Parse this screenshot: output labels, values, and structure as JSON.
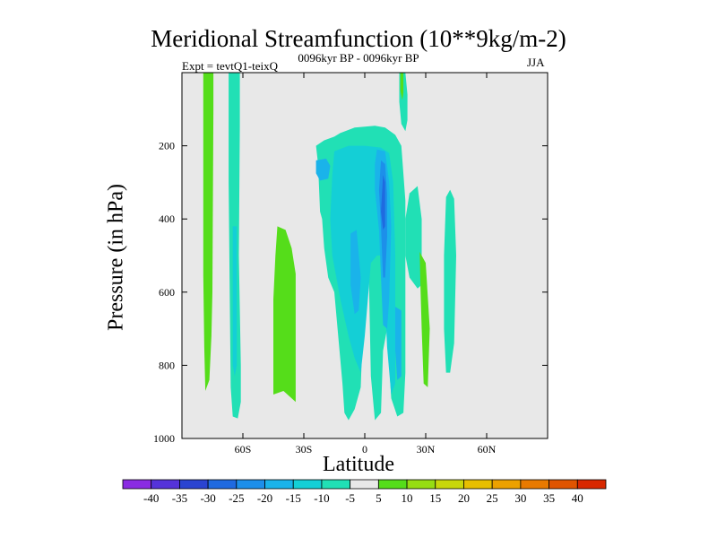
{
  "chart_data": {
    "type": "heatmap",
    "title": "Meridional Streamfunction (10**9kg/m-2)",
    "subtitle_left": "Expt = tevtQ1-teixQ",
    "subtitle_center": "0096kyr BP - 0096kyr BP",
    "subtitle_right": "JJA",
    "xlabel": "Latitude",
    "ylabel": "Pressure (in hPa)",
    "xlim": [
      -90,
      90
    ],
    "ylim": [
      1000,
      0
    ],
    "background_color": "#e8e8e8",
    "x_ticks": [
      {
        "value": -60,
        "label": "60S"
      },
      {
        "value": -30,
        "label": "30S"
      },
      {
        "value": 0,
        "label": "0"
      },
      {
        "value": 30,
        "label": "30N"
      },
      {
        "value": 60,
        "label": "60N"
      }
    ],
    "y_ticks": [
      {
        "value": 200,
        "label": "200"
      },
      {
        "value": 400,
        "label": "400"
      },
      {
        "value": 600,
        "label": "600"
      },
      {
        "value": 800,
        "label": "800"
      },
      {
        "value": 1000,
        "label": "1000"
      }
    ],
    "colorbar": {
      "labels": [
        "-40",
        "-35",
        "-30",
        "-25",
        "-20",
        "-15",
        "-10",
        "-5",
        "5",
        "10",
        "15",
        "20",
        "25",
        "30",
        "35",
        "40"
      ],
      "colors": [
        "#8a2be2",
        "#5533d9",
        "#2a44d1",
        "#1f6ae0",
        "#1d8fea",
        "#1ab3ea",
        "#14cfd6",
        "#21e0b5",
        "#e8e8e8",
        "#55dd1a",
        "#96dd12",
        "#c8d70a",
        "#e7bf00",
        "#eca100",
        "#e87a00",
        "#e05400",
        "#d82800"
      ]
    },
    "regions": [
      {
        "name": "green-band-70s",
        "value": 7.5,
        "color": "#55dd1a",
        "outline": [
          [
            -79.5,
            0
          ],
          [
            -74.5,
            0
          ],
          [
            -74.5,
            105
          ],
          [
            -75,
            600
          ],
          [
            -75.5,
            720
          ],
          [
            -76.5,
            840
          ],
          [
            -78.5,
            870
          ],
          [
            -79,
            750
          ],
          [
            -79.5,
            550
          ],
          [
            -79.5,
            200
          ]
        ]
      },
      {
        "name": "cyan-band-62s",
        "value": -7.5,
        "color": "#21e0b5",
        "outline": [
          [
            -67,
            0
          ],
          [
            -61.5,
            0
          ],
          [
            -61.5,
            150
          ],
          [
            -62,
            500
          ],
          [
            -61,
            800
          ],
          [
            -61,
            900
          ],
          [
            -62.5,
            945
          ],
          [
            -65,
            940
          ],
          [
            -66,
            860
          ],
          [
            -66.5,
            600
          ],
          [
            -67,
            300
          ]
        ]
      },
      {
        "name": "blue-core-62s",
        "value": -12.5,
        "color": "#14cfd6",
        "outline": [
          [
            -65,
            420
          ],
          [
            -63,
            420
          ],
          [
            -63,
            800
          ],
          [
            -64,
            830
          ],
          [
            -65,
            800
          ]
        ]
      },
      {
        "name": "green-blob-40s",
        "value": 7.5,
        "color": "#55dd1a",
        "outline": [
          [
            -43,
            420
          ],
          [
            -39,
            430
          ],
          [
            -36,
            480
          ],
          [
            -34,
            550
          ],
          [
            -34,
            900
          ],
          [
            -40,
            870
          ],
          [
            -45,
            880
          ],
          [
            -45,
            620
          ],
          [
            -44,
            500
          ]
        ]
      },
      {
        "name": "cyan-main-system",
        "value": -7.5,
        "color": "#21e0b5",
        "outline": [
          [
            -24,
            200
          ],
          [
            -20,
            185
          ],
          [
            -15,
            175
          ],
          [
            -12,
            165
          ],
          [
            -5,
            150
          ],
          [
            5,
            145
          ],
          [
            10,
            150
          ],
          [
            15,
            170
          ],
          [
            18,
            200
          ],
          [
            20,
            350
          ],
          [
            20,
            820
          ],
          [
            19,
            930
          ],
          [
            16,
            940
          ],
          [
            13,
            890
          ],
          [
            11,
            700
          ],
          [
            9,
            760
          ],
          [
            8,
            930
          ],
          [
            5,
            950
          ],
          [
            3,
            830
          ],
          [
            2,
            550
          ],
          [
            0,
            550
          ],
          [
            -2,
            860
          ],
          [
            -5,
            920
          ],
          [
            -8,
            950
          ],
          [
            -10,
            930
          ],
          [
            -11,
            850
          ],
          [
            -15,
            600
          ],
          [
            -18,
            560
          ],
          [
            -20,
            480
          ],
          [
            -21,
            400
          ],
          [
            -22,
            380
          ],
          [
            -23,
            250
          ]
        ]
      },
      {
        "name": "cyan-right-lobe",
        "value": -7.5,
        "color": "#21e0b5",
        "outline": [
          [
            20,
            400
          ],
          [
            22,
            330
          ],
          [
            26,
            310
          ],
          [
            28,
            400
          ],
          [
            28,
            580
          ],
          [
            26,
            590
          ],
          [
            22,
            560
          ],
          [
            20,
            500
          ]
        ]
      },
      {
        "name": "blue-inner-field",
        "value": -12.5,
        "color": "#14cfd6",
        "outline": [
          [
            -15,
            215
          ],
          [
            -8,
            200
          ],
          [
            0,
            200
          ],
          [
            8,
            205
          ],
          [
            12,
            220
          ],
          [
            14,
            300
          ],
          [
            15,
            500
          ],
          [
            15,
            850
          ],
          [
            13,
            880
          ],
          [
            11,
            750
          ],
          [
            9,
            500
          ],
          [
            6,
            500
          ],
          [
            3,
            520
          ],
          [
            0,
            720
          ],
          [
            -2,
            820
          ],
          [
            -5,
            780
          ],
          [
            -8,
            720
          ],
          [
            -12,
            620
          ],
          [
            -14,
            560
          ],
          [
            -16,
            500
          ],
          [
            -17,
            400
          ],
          [
            -16,
            280
          ]
        ]
      },
      {
        "name": "blue-upper-left",
        "value": -17.5,
        "color": "#1ab3ea",
        "outline": [
          [
            -24,
            240
          ],
          [
            -19,
            235
          ],
          [
            -17,
            255
          ],
          [
            -18,
            290
          ],
          [
            -22,
            295
          ],
          [
            -24,
            275
          ]
        ]
      },
      {
        "name": "blue-core-mid",
        "value": -17.5,
        "color": "#1ab3ea",
        "outline": [
          [
            6,
            210
          ],
          [
            10,
            215
          ],
          [
            12,
            300
          ],
          [
            13,
            420
          ],
          [
            12,
            620
          ],
          [
            11,
            700
          ],
          [
            9,
            690
          ],
          [
            8,
            560
          ],
          [
            7,
            430
          ],
          [
            5,
            320
          ],
          [
            5,
            250
          ]
        ]
      },
      {
        "name": "blue-core-inner",
        "value": -22.5,
        "color": "#1d8fea",
        "outline": [
          [
            8,
            240
          ],
          [
            10,
            250
          ],
          [
            11,
            330
          ],
          [
            11,
            450
          ],
          [
            10,
            560
          ],
          [
            9,
            560
          ],
          [
            8,
            420
          ],
          [
            7,
            320
          ]
        ]
      },
      {
        "name": "blue-core-deep",
        "value": -27.5,
        "color": "#1f6ae0",
        "outline": [
          [
            9,
            280
          ],
          [
            10,
            300
          ],
          [
            10,
            420
          ],
          [
            9,
            430
          ],
          [
            8,
            380
          ]
        ]
      },
      {
        "name": "blue-lower-left",
        "value": -17.5,
        "color": "#1ab3ea",
        "outline": [
          [
            -7,
            440
          ],
          [
            -4,
            430
          ],
          [
            -2,
            560
          ],
          [
            -3,
            650
          ],
          [
            -5,
            660
          ],
          [
            -7,
            580
          ]
        ]
      },
      {
        "name": "blue-lower-right",
        "value": -17.5,
        "color": "#1ab3ea",
        "outline": [
          [
            15,
            640
          ],
          [
            18,
            650
          ],
          [
            18,
            830
          ],
          [
            16,
            840
          ],
          [
            15,
            760
          ]
        ]
      },
      {
        "name": "cyan-top-18n",
        "value": -7.5,
        "color": "#21e0b5",
        "outline": [
          [
            17,
            0
          ],
          [
            20,
            0
          ],
          [
            21,
            60
          ],
          [
            21,
            130
          ],
          [
            20,
            160
          ],
          [
            18,
            140
          ],
          [
            17,
            80
          ]
        ]
      },
      {
        "name": "green-top-18n",
        "value": 7.5,
        "color": "#55dd1a",
        "outline": [
          [
            17.5,
            0
          ],
          [
            19,
            0
          ],
          [
            19,
            55
          ],
          [
            18.5,
            75
          ],
          [
            17.5,
            50
          ]
        ]
      },
      {
        "name": "green-30n",
        "value": 7.5,
        "color": "#55dd1a",
        "outline": [
          [
            27,
            490
          ],
          [
            30,
            520
          ],
          [
            32,
            700
          ],
          [
            31,
            860
          ],
          [
            29,
            850
          ],
          [
            28,
            700
          ],
          [
            27.5,
            600
          ]
        ]
      },
      {
        "name": "cyan-42n",
        "value": -7.5,
        "color": "#21e0b5",
        "outline": [
          [
            40,
            340
          ],
          [
            42,
            320
          ],
          [
            44,
            345
          ],
          [
            45,
            500
          ],
          [
            44,
            740
          ],
          [
            42,
            820
          ],
          [
            40,
            820
          ],
          [
            39,
            700
          ],
          [
            39,
            500
          ]
        ]
      }
    ]
  }
}
